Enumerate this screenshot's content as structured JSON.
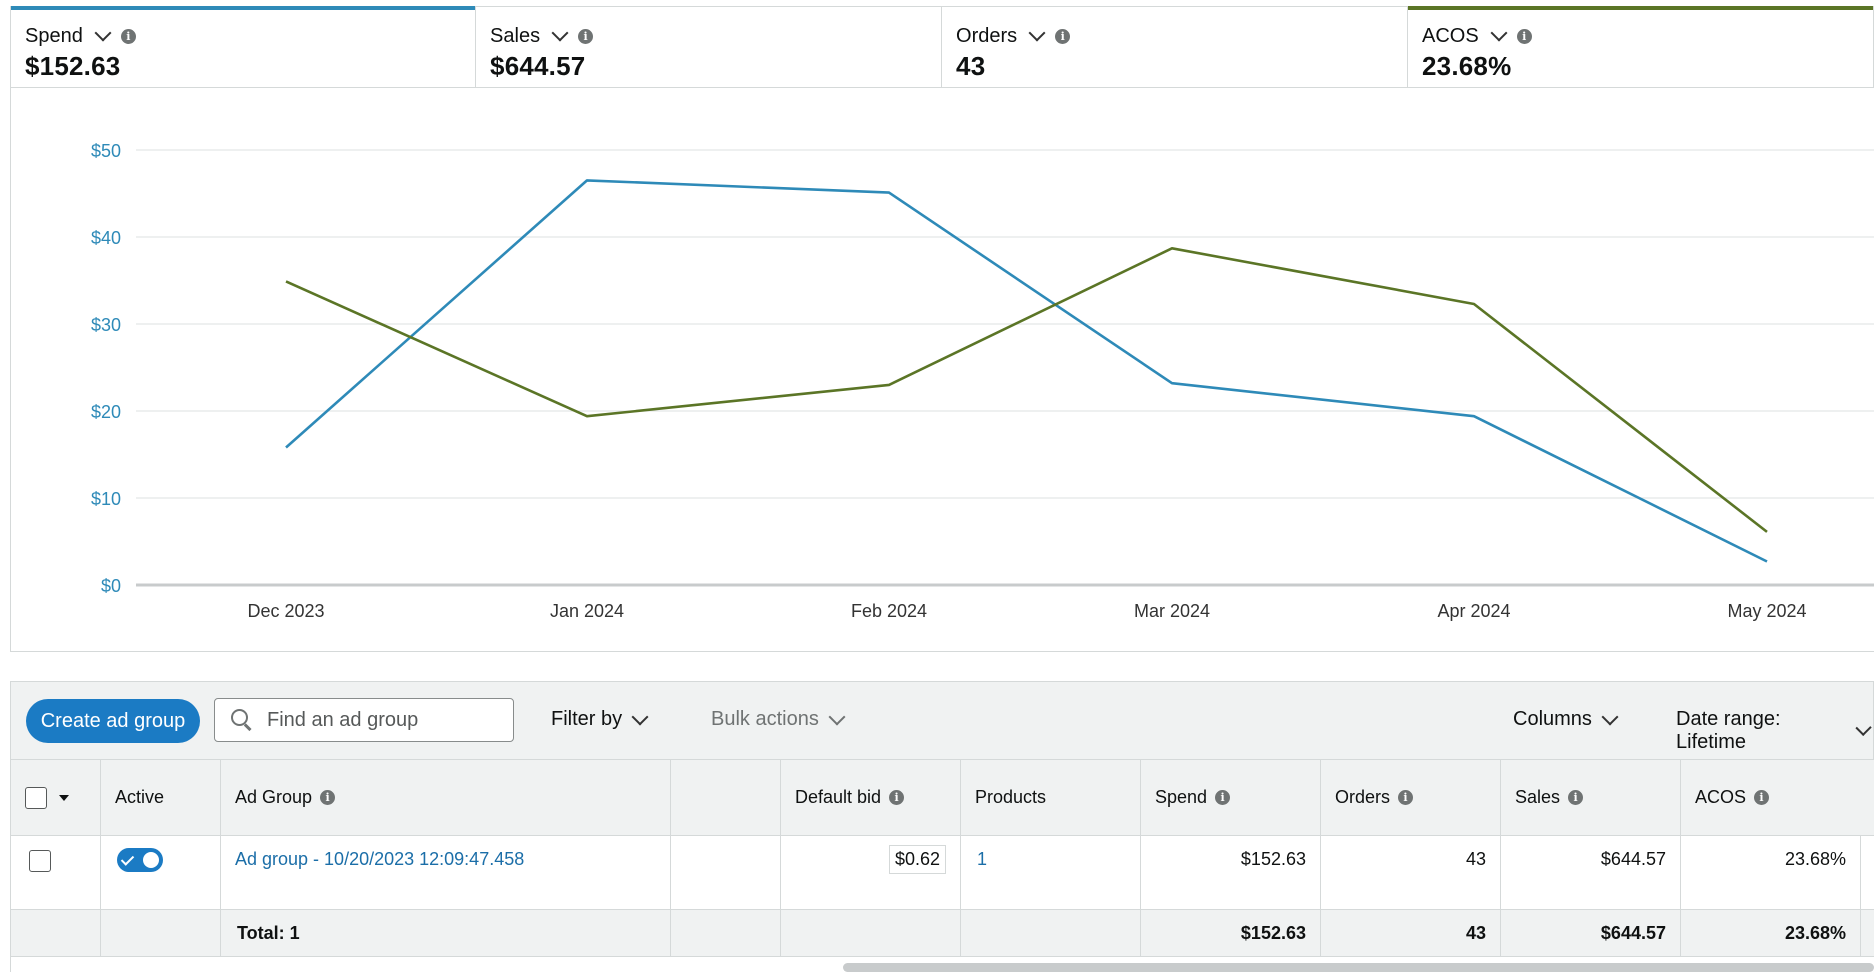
{
  "metrics": [
    {
      "label": "Spend",
      "value": "$152.63",
      "color": "#2e8ab8"
    },
    {
      "label": "Sales",
      "value": "$644.57",
      "color": ""
    },
    {
      "label": "Orders",
      "value": "43",
      "color": ""
    },
    {
      "label": "ACOS",
      "value": "23.68%",
      "color": "#5b7526"
    }
  ],
  "info_glyph": "i",
  "chart_data": {
    "type": "line",
    "categories": [
      "Dec 2023",
      "Jan 2024",
      "Feb 2024",
      "Mar 2024",
      "Apr 2024",
      "May 2024"
    ],
    "ylim": [
      0,
      50
    ],
    "ytick_labels": [
      "$0",
      "$10",
      "$20",
      "$30",
      "$40",
      "$50"
    ],
    "grid": true,
    "series": [
      {
        "name": "Spend",
        "color": "#2e8ab8",
        "values": [
          15.8,
          46.5,
          45.1,
          23.2,
          19.4,
          2.7
        ]
      },
      {
        "name": "ACOS",
        "color": "#5b7526",
        "values": [
          34.9,
          19.4,
          23.0,
          38.7,
          32.3,
          6.1
        ]
      }
    ]
  },
  "toolbar": {
    "create_label": "Create ad group",
    "search_placeholder": "Find an ad group",
    "filter_label": "Filter by",
    "bulk_label": "Bulk actions",
    "columns_label": "Columns",
    "date_label": "Date range: Lifetime"
  },
  "table": {
    "headers": {
      "active": "Active",
      "ad_group": "Ad Group",
      "default_bid": "Default bid",
      "products": "Products",
      "spend": "Spend",
      "orders": "Orders",
      "sales": "Sales",
      "acos": "ACOS"
    },
    "rows": [
      {
        "ad_group": "Ad group - 10/20/2023 12:09:47.458",
        "default_bid": "$0.62",
        "products": "1",
        "spend": "$152.63",
        "orders": "43",
        "sales": "$644.57",
        "acos": "23.68%"
      }
    ],
    "total": {
      "label": "Total: 1",
      "spend": "$152.63",
      "orders": "43",
      "sales": "$644.57",
      "acos": "23.68%"
    }
  }
}
